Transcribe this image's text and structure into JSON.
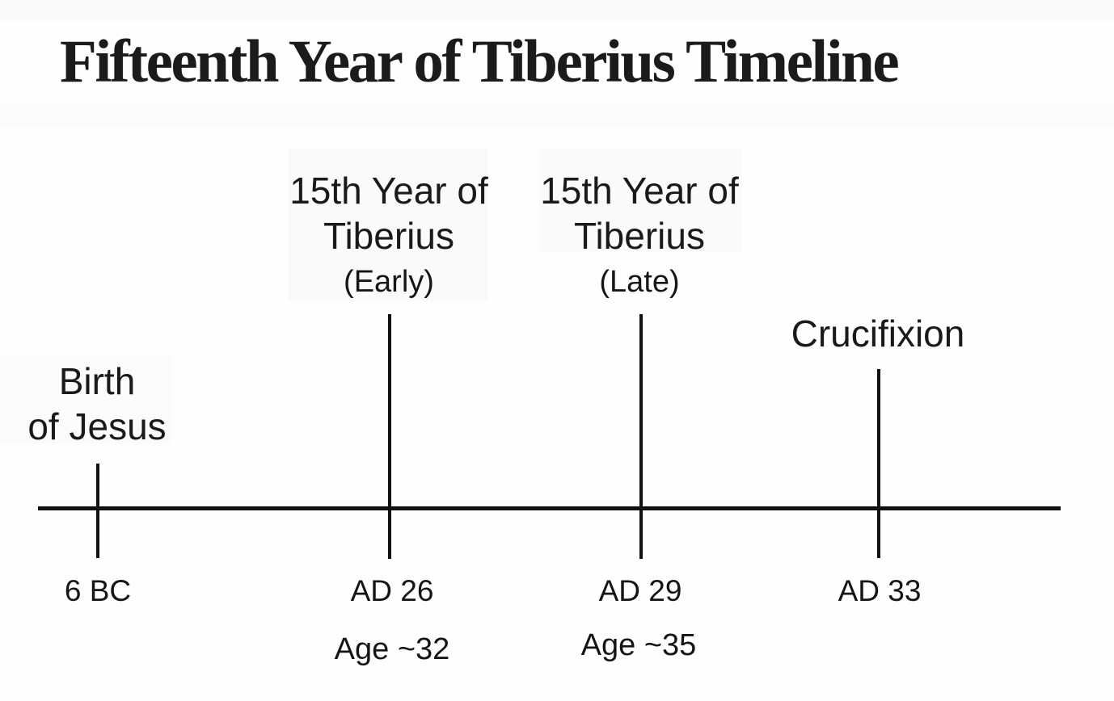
{
  "title": "Fifteenth Year of Tiberius Timeline",
  "colors": {
    "text": "#1a1a1a",
    "line": "#121212",
    "background": "#ffffff"
  },
  "chart_data": {
    "type": "table",
    "title": "Fifteenth Year of Tiberius Timeline",
    "events": [
      {
        "label_line1": "Birth",
        "label_line2": "of Jesus",
        "qualifier": "",
        "year": "6 BC",
        "age": ""
      },
      {
        "label_line1": "15th Year of",
        "label_line2": "Tiberius",
        "qualifier": "(Early)",
        "year": "AD 26",
        "age": "Age ~32"
      },
      {
        "label_line1": "15th Year of",
        "label_line2": "Tiberius",
        "qualifier": "(Late)",
        "year": "AD 29",
        "age": "Age ~35"
      },
      {
        "label_line1": "Crucifixion",
        "label_line2": "",
        "qualifier": "",
        "year": "AD 33",
        "age": ""
      }
    ]
  }
}
